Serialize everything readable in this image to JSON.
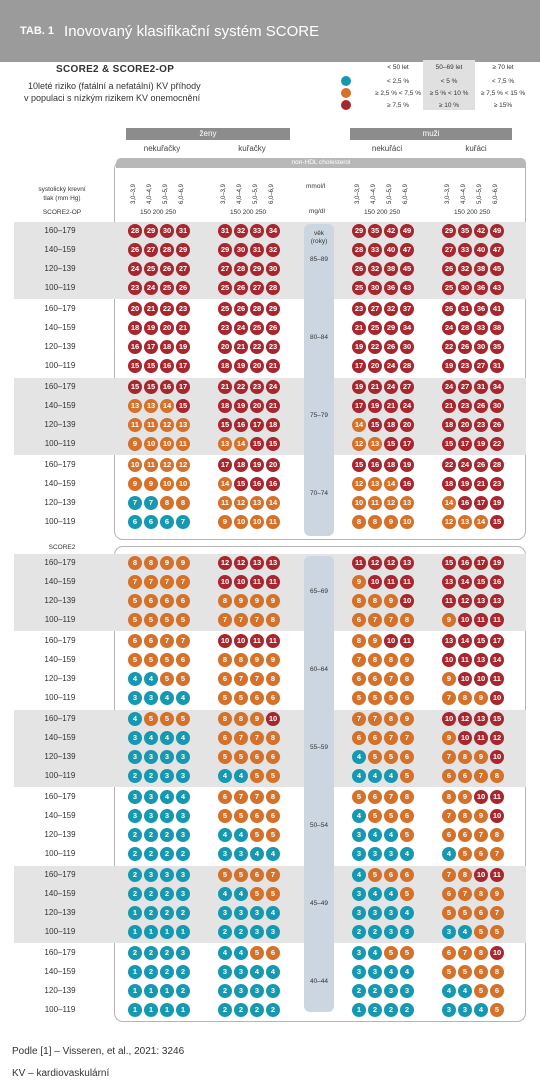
{
  "header": {
    "tag": "TAB. 1",
    "title": "Inovovaný klasifikační systém SCORE"
  },
  "subtitle": {
    "heading": "SCORE2 & SCORE2-OP",
    "line1": "10leté riziko (fatální a nefatální) KV příhody",
    "line2": "v populaci s nízkým rizikem KV onemocnění"
  },
  "legend": {
    "headers": [
      "< 50 let",
      "50–69 let",
      "≥ 70 let"
    ],
    "rows": [
      {
        "color": "#1699b0",
        "values": [
          "< 2,5 %",
          "< 5 %",
          "< 7,5 %"
        ]
      },
      {
        "color": "#d4712a",
        "values": [
          "≥ 2,5 % < 7,5 %",
          "≥ 5 % < 10 %",
          "≥ 7,5 % < 15 %"
        ]
      },
      {
        "color": "#a8262d",
        "values": [
          "≥ 7,5 %",
          "≥ 10 %",
          "≥ 15%"
        ]
      }
    ]
  },
  "groups": {
    "women": "ženy",
    "men": "muži",
    "sub": [
      "nekuřačky",
      "kuřačky",
      "nekuřáci",
      "kuřáci"
    ]
  },
  "nonhdl": "non-HDL cholesterol",
  "ticks_mmol": [
    "3,0–3,9",
    "4,0–4,9",
    "5,0–5,9",
    "6,0–6,9"
  ],
  "ticks_mg": "150  200  250",
  "unit_mmol": "mmol/l",
  "unit_mg": "mg/dl",
  "ylabel": {
    "line1": "systolický krevní",
    "line2": "tlak (mm Hg)",
    "score2op": "SCORE2-OP",
    "score2": "SCORE2"
  },
  "age_label": {
    "line1": "věk",
    "line2": "(roky)"
  },
  "bp_rows": [
    "160–179",
    "140–159",
    "120–139",
    "100–119"
  ],
  "colors": {
    "teal": "#1699b0",
    "orange": "#d4712a",
    "red": "#a8262d"
  },
  "blocks": [
    {
      "age": "85–89",
      "cells": [
        [
          28,
          29,
          30,
          31,
          31,
          32,
          33,
          34,
          29,
          35,
          42,
          49,
          29,
          35,
          42,
          49
        ],
        [
          26,
          27,
          28,
          29,
          29,
          30,
          31,
          32,
          28,
          33,
          40,
          47,
          27,
          33,
          40,
          47
        ],
        [
          24,
          25,
          26,
          27,
          27,
          28,
          29,
          30,
          26,
          32,
          38,
          45,
          26,
          32,
          38,
          45
        ],
        [
          23,
          24,
          25,
          26,
          25,
          26,
          27,
          28,
          25,
          30,
          36,
          43,
          25,
          30,
          36,
          43
        ]
      ]
    },
    {
      "age": "80–84",
      "cells": [
        [
          20,
          21,
          22,
          23,
          25,
          26,
          28,
          29,
          23,
          27,
          32,
          37,
          26,
          31,
          36,
          41
        ],
        [
          18,
          19,
          20,
          21,
          23,
          24,
          25,
          26,
          21,
          25,
          29,
          34,
          24,
          28,
          33,
          38
        ],
        [
          16,
          17,
          18,
          19,
          20,
          21,
          22,
          23,
          19,
          22,
          26,
          30,
          22,
          26,
          30,
          35
        ],
        [
          15,
          15,
          16,
          17,
          18,
          19,
          20,
          21,
          17,
          20,
          24,
          28,
          19,
          23,
          27,
          31
        ]
      ]
    },
    {
      "age": "75–79",
      "cells": [
        [
          15,
          15,
          16,
          17,
          21,
          22,
          23,
          24,
          19,
          21,
          24,
          27,
          24,
          27,
          31,
          34
        ],
        [
          13,
          13,
          14,
          15,
          18,
          19,
          20,
          21,
          17,
          19,
          21,
          24,
          21,
          23,
          26,
          30
        ],
        [
          11,
          11,
          12,
          13,
          15,
          16,
          17,
          18,
          14,
          15,
          18,
          20,
          18,
          20,
          23,
          26
        ],
        [
          9,
          10,
          10,
          11,
          13,
          14,
          15,
          15,
          12,
          13,
          15,
          17,
          15,
          17,
          19,
          22
        ]
      ]
    },
    {
      "age": "70–74",
      "cells": [
        [
          10,
          11,
          12,
          12,
          17,
          18,
          19,
          20,
          15,
          16,
          18,
          19,
          22,
          24,
          26,
          28
        ],
        [
          9,
          9,
          10,
          10,
          14,
          15,
          16,
          16,
          12,
          13,
          14,
          16,
          18,
          19,
          21,
          23
        ],
        [
          7,
          7,
          8,
          8,
          11,
          12,
          13,
          14,
          10,
          11,
          12,
          13,
          14,
          16,
          17,
          19
        ],
        [
          6,
          6,
          6,
          7,
          9,
          10,
          10,
          11,
          8,
          8,
          9,
          10,
          12,
          13,
          14,
          15
        ]
      ]
    },
    {
      "age": "65–69",
      "cells": [
        [
          8,
          8,
          9,
          9,
          12,
          12,
          13,
          13,
          11,
          12,
          12,
          13,
          15,
          16,
          17,
          19
        ],
        [
          7,
          7,
          7,
          7,
          10,
          10,
          11,
          11,
          9,
          10,
          11,
          11,
          13,
          14,
          15,
          16
        ],
        [
          5,
          6,
          6,
          6,
          8,
          9,
          9,
          9,
          8,
          8,
          9,
          10,
          11,
          12,
          13,
          13
        ],
        [
          5,
          5,
          5,
          5,
          7,
          7,
          7,
          8,
          6,
          7,
          7,
          8,
          9,
          10,
          11,
          11
        ]
      ]
    },
    {
      "age": "60–64",
      "cells": [
        [
          6,
          6,
          7,
          7,
          10,
          10,
          11,
          11,
          8,
          9,
          10,
          11,
          13,
          14,
          15,
          17
        ],
        [
          5,
          5,
          5,
          6,
          8,
          8,
          9,
          9,
          7,
          8,
          8,
          9,
          10,
          11,
          13,
          14
        ],
        [
          4,
          4,
          5,
          5,
          6,
          7,
          7,
          8,
          6,
          6,
          7,
          8,
          9,
          10,
          10,
          11
        ],
        [
          3,
          3,
          4,
          4,
          5,
          5,
          6,
          6,
          5,
          5,
          5,
          6,
          7,
          8,
          9,
          10
        ]
      ]
    },
    {
      "age": "55–59",
      "cells": [
        [
          4,
          5,
          5,
          5,
          8,
          8,
          9,
          10,
          7,
          7,
          8,
          9,
          10,
          12,
          13,
          15
        ],
        [
          3,
          4,
          4,
          4,
          6,
          7,
          7,
          8,
          6,
          6,
          7,
          7,
          9,
          10,
          11,
          12
        ],
        [
          3,
          3,
          3,
          3,
          5,
          5,
          6,
          6,
          4,
          5,
          5,
          6,
          7,
          8,
          9,
          10
        ],
        [
          2,
          2,
          3,
          3,
          4,
          4,
          5,
          5,
          4,
          4,
          4,
          5,
          6,
          6,
          7,
          8
        ]
      ]
    },
    {
      "age": "50–54",
      "cells": [
        [
          3,
          3,
          4,
          4,
          6,
          7,
          7,
          8,
          5,
          6,
          7,
          8,
          8,
          9,
          10,
          11
        ],
        [
          3,
          3,
          3,
          3,
          5,
          5,
          6,
          6,
          4,
          5,
          5,
          6,
          7,
          8,
          9,
          10
        ],
        [
          2,
          2,
          2,
          3,
          4,
          4,
          5,
          5,
          3,
          4,
          4,
          5,
          6,
          6,
          7,
          8
        ],
        [
          2,
          2,
          2,
          2,
          3,
          3,
          4,
          4,
          3,
          3,
          3,
          4,
          4,
          5,
          6,
          7
        ]
      ]
    },
    {
      "age": "45–49",
      "cells": [
        [
          2,
          3,
          3,
          3,
          5,
          5,
          6,
          7,
          4,
          5,
          6,
          6,
          7,
          8,
          10,
          11
        ],
        [
          2,
          2,
          2,
          3,
          4,
          4,
          5,
          5,
          3,
          4,
          4,
          5,
          6,
          7,
          8,
          9
        ],
        [
          1,
          2,
          2,
          2,
          3,
          3,
          3,
          4,
          3,
          3,
          3,
          4,
          5,
          5,
          6,
          7
        ],
        [
          1,
          1,
          1,
          1,
          2,
          2,
          3,
          3,
          2,
          2,
          3,
          3,
          3,
          4,
          5,
          5
        ]
      ]
    },
    {
      "age": "40–44",
      "cells": [
        [
          2,
          2,
          2,
          3,
          4,
          4,
          5,
          6,
          3,
          4,
          5,
          5,
          6,
          7,
          8,
          10
        ],
        [
          1,
          2,
          2,
          2,
          3,
          3,
          4,
          4,
          3,
          3,
          4,
          4,
          5,
          5,
          6,
          8
        ],
        [
          1,
          1,
          1,
          2,
          2,
          3,
          3,
          3,
          2,
          2,
          3,
          3,
          4,
          4,
          5,
          6
        ],
        [
          1,
          1,
          1,
          1,
          2,
          2,
          2,
          2,
          1,
          2,
          2,
          2,
          3,
          3,
          4,
          5
        ]
      ]
    }
  ],
  "footer": {
    "line1": "Podle [1] – Visseren, et al., 2021: 3246",
    "line2": "KV – kardiovaskulární"
  }
}
